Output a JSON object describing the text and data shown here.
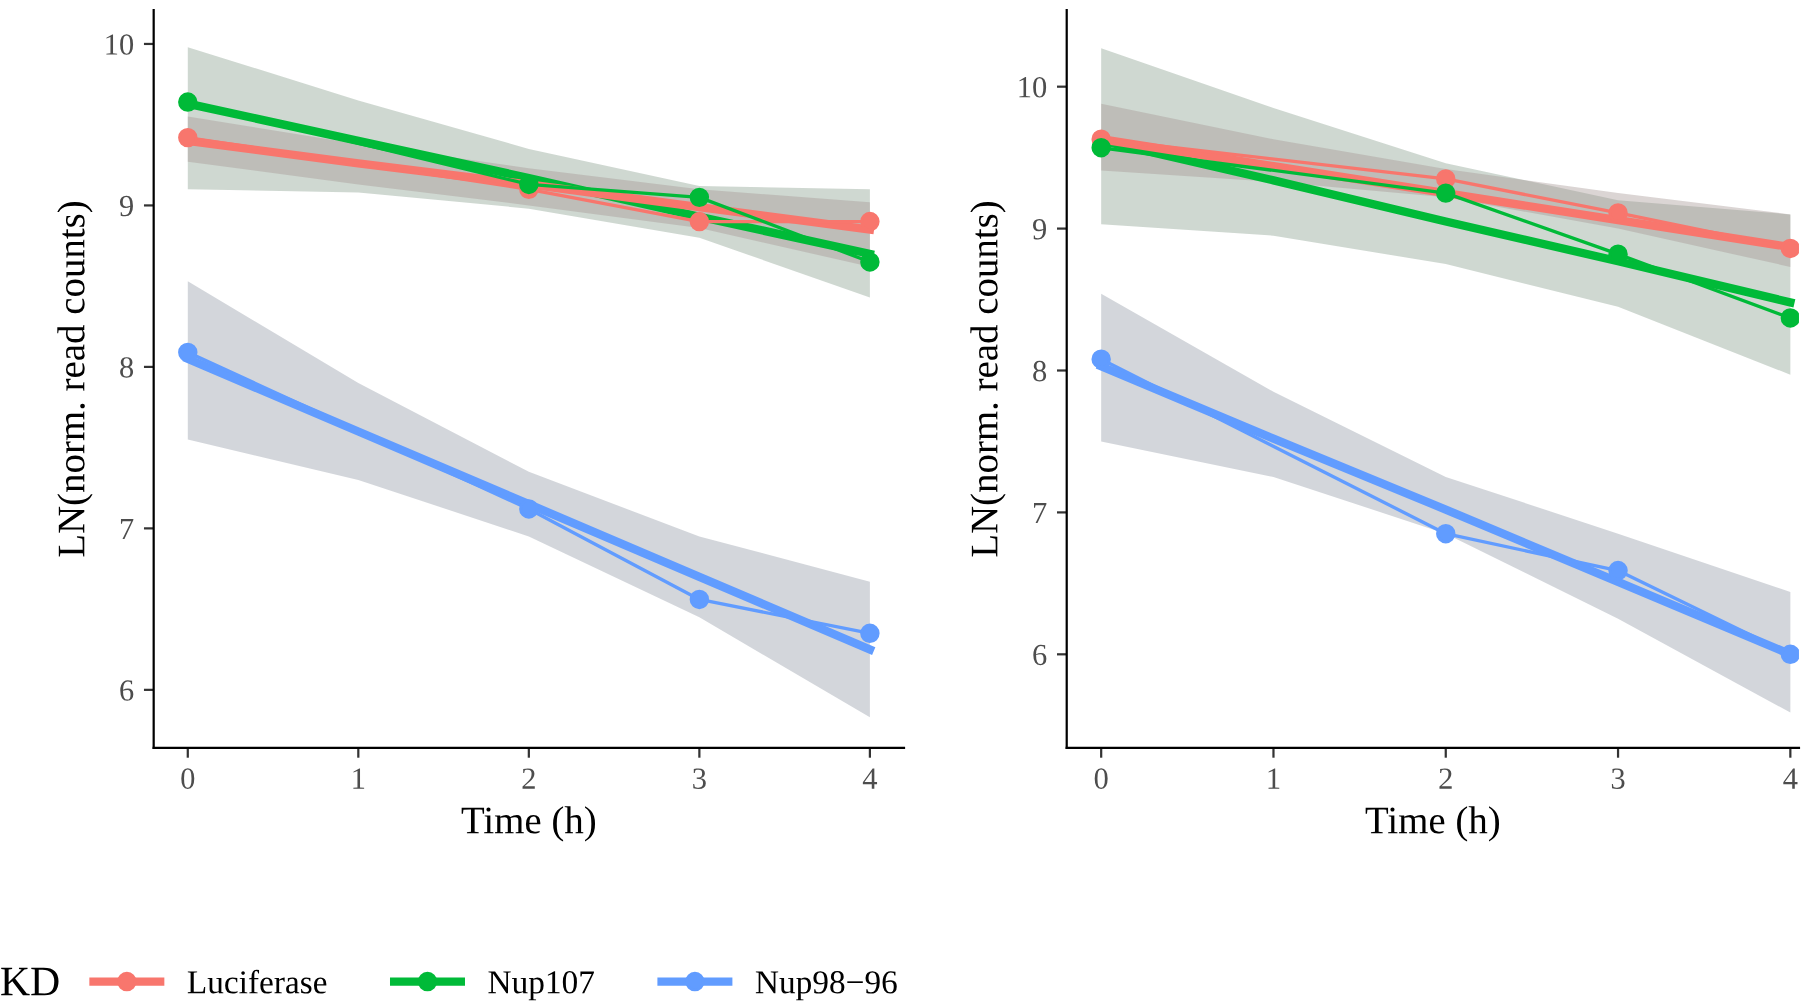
{
  "chart_data": [
    {
      "type": "line",
      "xlabel": "Time (h)",
      "ylabel": "LN(norm. read counts)",
      "legend_title": "KD",
      "legend": "bottom",
      "grid": false,
      "xlim": [
        -0.2,
        4.2
      ],
      "xticks": [
        0,
        1,
        2,
        3,
        4
      ],
      "ylim": [
        5.64,
        10.21
      ],
      "yticks": [
        6,
        7,
        8,
        9,
        10
      ],
      "series": [
        {
          "x": [
            0,
            1,
            2,
            3,
            4
          ],
          "values": [
            9.63,
            9.4,
            9.17,
            8.93,
            8.7
          ],
          "lower": [
            9.1,
            9.08,
            8.98,
            8.8,
            8.43
          ],
          "upper": [
            9.98,
            9.65,
            9.35,
            9.12,
            9.1
          ],
          "color": "#00ba38",
          "marker": "none"
        },
        {
          "x": [
            0,
            1,
            2,
            3,
            4
          ],
          "values": [
            9.4,
            9.26,
            9.13,
            8.99,
            8.85
          ],
          "lower": [
            9.27,
            9.13,
            9.0,
            8.86,
            8.62
          ],
          "upper": [
            9.55,
            9.38,
            9.23,
            9.1,
            9.02
          ],
          "color": "#f8766d",
          "marker": "none"
        },
        {
          "x": [
            0,
            1,
            2,
            3,
            4
          ],
          "values": [
            8.05,
            7.6,
            7.15,
            6.7,
            6.25
          ],
          "lower": [
            7.55,
            7.3,
            6.95,
            6.45,
            5.83
          ],
          "upper": [
            8.53,
            7.9,
            7.35,
            6.95,
            6.67
          ],
          "color": "#619cff",
          "marker": "none"
        },
        {
          "name": "Luciferase",
          "x": [
            0,
            2,
            3,
            4
          ],
          "values": [
            9.42,
            9.1,
            8.9,
            8.9
          ],
          "color": "#f8766d",
          "marker": "circle"
        },
        {
          "name": "Nup107",
          "x": [
            0,
            2,
            3,
            4
          ],
          "values": [
            9.64,
            9.13,
            9.05,
            8.65
          ],
          "color": "#00ba38",
          "marker": "circle"
        },
        {
          "name": "Nup98−96",
          "x": [
            0,
            2,
            3,
            4
          ],
          "values": [
            8.09,
            7.12,
            6.56,
            6.35
          ],
          "color": "#619cff",
          "marker": "circle"
        }
      ]
    },
    {
      "type": "line",
      "xlabel": "Time (h)",
      "ylabel": "LN(norm. read counts)",
      "legend": false,
      "grid": false,
      "xlim": [
        -0.2,
        4.05
      ],
      "xticks": [
        0,
        1,
        2,
        3,
        4
      ],
      "ylim": [
        5.34,
        10.54
      ],
      "yticks": [
        6,
        7,
        8,
        9,
        10
      ],
      "series": [
        {
          "x": [
            0,
            1,
            2,
            3,
            4
          ],
          "values": [
            9.62,
            9.34,
            9.05,
            8.77,
            8.48
          ],
          "lower": [
            9.03,
            8.95,
            8.75,
            8.45,
            7.97
          ],
          "upper": [
            10.27,
            9.85,
            9.46,
            9.2,
            9.1
          ],
          "color": "#00ba38",
          "marker": "none"
        },
        {
          "x": [
            0,
            1,
            2,
            3,
            4
          ],
          "values": [
            9.63,
            9.44,
            9.25,
            9.06,
            8.87
          ],
          "lower": [
            9.41,
            9.33,
            9.22,
            9.0,
            8.73
          ],
          "upper": [
            9.88,
            9.63,
            9.42,
            9.25,
            9.1
          ],
          "color": "#f8766d",
          "marker": "none"
        },
        {
          "x": [
            0,
            1,
            2,
            3,
            4
          ],
          "values": [
            8.03,
            7.52,
            7.02,
            6.51,
            6.0
          ],
          "lower": [
            7.5,
            7.25,
            6.85,
            6.25,
            5.59
          ],
          "upper": [
            8.54,
            7.85,
            7.25,
            6.85,
            6.44
          ],
          "color": "#619cff",
          "marker": "none"
        },
        {
          "x": [
            0,
            2,
            3,
            4
          ],
          "values": [
            9.63,
            9.35,
            9.11,
            8.86
          ],
          "color": "#f8766d",
          "marker": "circle"
        },
        {
          "x": [
            0,
            2,
            3,
            4
          ],
          "values": [
            9.57,
            9.25,
            8.82,
            8.37
          ],
          "color": "#00ba38",
          "marker": "circle"
        },
        {
          "x": [
            0,
            2,
            3,
            4
          ],
          "values": [
            8.08,
            6.85,
            6.59,
            6.0
          ],
          "color": "#619cff",
          "marker": "circle"
        }
      ]
    }
  ]
}
